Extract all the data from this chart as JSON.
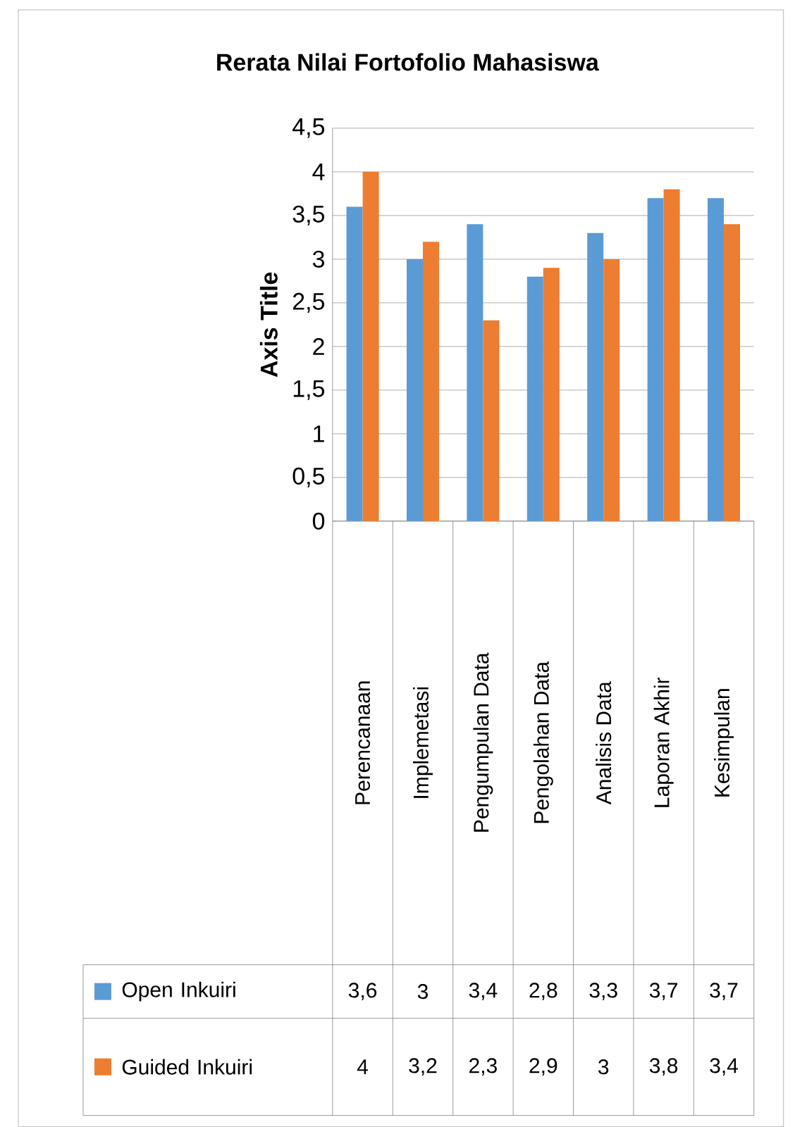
{
  "chart_data": {
    "type": "bar",
    "title": "Rerata Nilai Fortofolio Mahasiswa",
    "ylabel": "Axis Title",
    "categories": [
      "Perencanaan",
      "Implemetasi",
      "Pengumpulan Data",
      "Pengolahan Data",
      "Analisis Data",
      "Laporan Akhir",
      "Kesimpulan"
    ],
    "series": [
      {
        "name": "Open Inkuiri",
        "color": "#5b9bd5",
        "values": [
          3.6,
          3,
          3.4,
          2.8,
          3.3,
          3.7,
          3.7
        ],
        "value_labels": [
          "3,6",
          "3",
          "3,4",
          "2,8",
          "3,3",
          "3,7",
          "3,7"
        ]
      },
      {
        "name": "Guided Inkuiri",
        "color": "#ed7d31",
        "values": [
          4,
          3.2,
          2.3,
          2.9,
          3,
          3.8,
          3.4
        ],
        "value_labels": [
          "4",
          "3,2",
          "2,3",
          "2,9",
          "3",
          "3,8",
          "3,4"
        ]
      }
    ],
    "ylim": [
      0,
      4.5
    ],
    "yticks": [
      0,
      {
        "value": 0.5,
        "label": "0,5"
      },
      1,
      {
        "value": 1.5,
        "label": "1,5"
      },
      2,
      {
        "value": 2.5,
        "label": "2,5"
      },
      3,
      {
        "value": 3.5,
        "label": "3,5"
      },
      4,
      {
        "value": 4.5,
        "label": "4,5"
      }
    ],
    "grid": "y",
    "legend": "bottom"
  }
}
